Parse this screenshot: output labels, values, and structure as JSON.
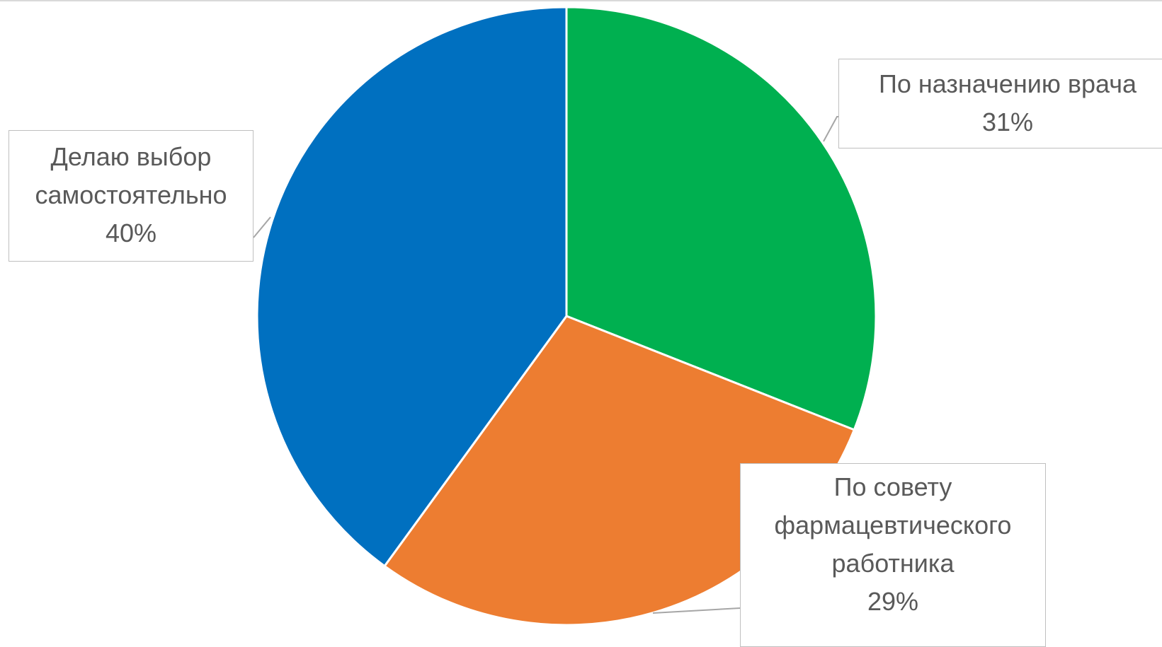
{
  "chart_data": {
    "type": "pie",
    "title": "",
    "slices": [
      {
        "label": "По назначению врача",
        "value": 31,
        "value_label": "31%",
        "color": "#00b050"
      },
      {
        "label": "По совету фармацевтического работника",
        "value": 29,
        "value_label": "29%",
        "color": "#ed7d31"
      },
      {
        "label": "Делаю выбор самостоятельно",
        "value": 40,
        "value_label": "40%",
        "color": "#0070c0"
      }
    ],
    "start_angle_deg": 0,
    "direction": "clockwise",
    "legend": "none",
    "data_labels": "callouts"
  },
  "labels": {
    "slice0_line1": "По назначению врача",
    "slice0_pct": "31%",
    "slice1_line1": "По совету",
    "slice1_line2": "фармацевтического",
    "slice1_line3": "работника",
    "slice1_pct": "29%",
    "slice2_line1": "Делаю выбор",
    "slice2_line2": "самостоятельно",
    "slice2_pct": "40%"
  }
}
